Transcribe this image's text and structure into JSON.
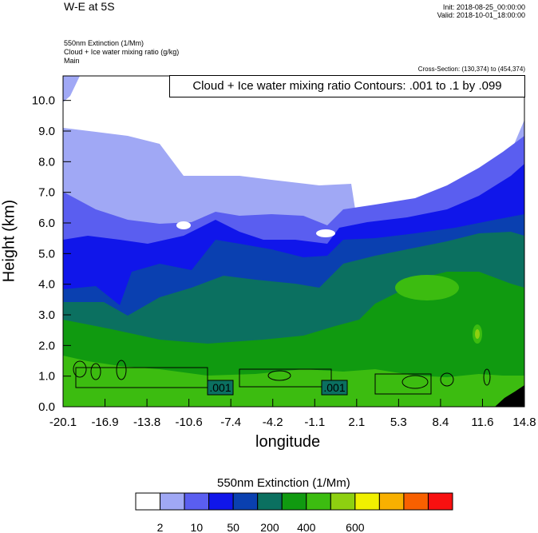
{
  "header": {
    "title": "W-E at 5S",
    "init": "Init: 2018-08-25_00:00:00",
    "valid": "Valid: 2018-10-01_18:00:00",
    "subtitle1": "550nm Extinction   (1/Mm)",
    "subtitle2": "Cloud + Ice water mixing ratio   (g/kg)",
    "subtitle3": "Main",
    "cross_section": "Cross-Section: (130,374) to (454,374)"
  },
  "chart_data": {
    "type": "heatmap",
    "contour_box": "Cloud + Ice water mixing ratio Contours: .001 to .1 by .099",
    "xlabel": "longitude",
    "ylabel": "Height (km)",
    "xticks": [
      "-20.1",
      "-16.9",
      "-13.8",
      "-10.6",
      "-7.4",
      "-4.2",
      "-1.1",
      "2.1",
      "5.3",
      "8.4",
      "11.6",
      "14.8"
    ],
    "yticks": [
      "0.0",
      "1.0",
      "2.0",
      "3.0",
      "4.0",
      "5.0",
      "6.0",
      "7.0",
      "8.0",
      "9.0",
      "10.0"
    ],
    "ylim": [
      0,
      10.8
    ],
    "contour_labels": [
      ".001",
      ".001"
    ],
    "colorbar": {
      "title": "550nm Extinction  (1/Mm)",
      "tick_labels": [
        "2",
        "10",
        "50",
        "200",
        "400",
        "600"
      ],
      "colors": [
        "#ffffff",
        "#a0a8f5",
        "#5a5ef0",
        "#1016ea",
        "#0a40b0",
        "#0b7060",
        "#109a10",
        "#3cbc10",
        "#8ed010",
        "#f0f000",
        "#f8b000",
        "#f86000",
        "#f81010"
      ]
    },
    "bands": [
      {
        "level": 1,
        "color": "#a0a8f5"
      },
      {
        "level": 2,
        "color": "#5a5ef0"
      },
      {
        "level": 3,
        "color": "#1016ea"
      },
      {
        "level": 4,
        "color": "#0a40b0"
      },
      {
        "level": 5,
        "color": "#0b7060"
      },
      {
        "level": 6,
        "color": "#109a10"
      },
      {
        "level": 7,
        "color": "#3cbc10"
      }
    ]
  }
}
